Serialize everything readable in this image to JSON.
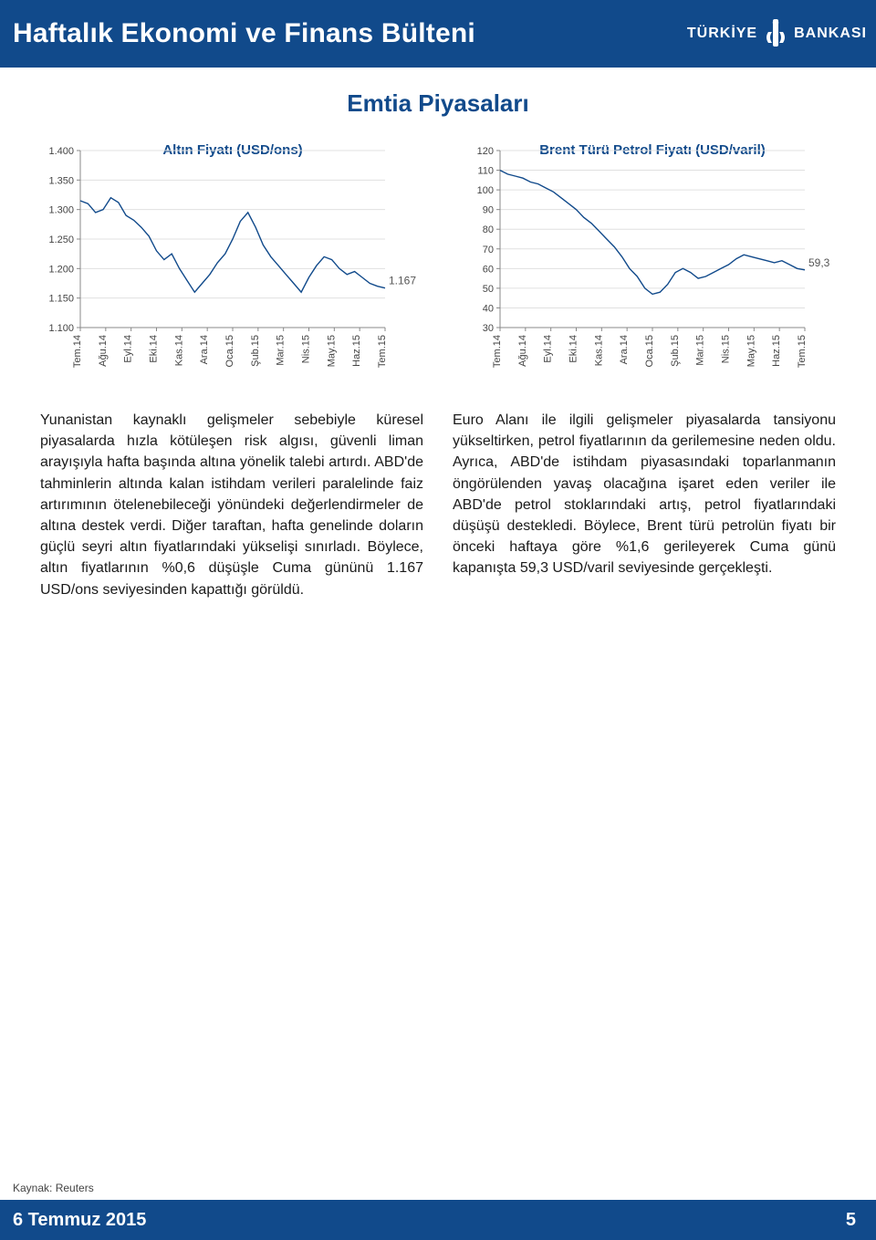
{
  "header": {
    "title": "Haftalık Ekonomi ve Finans Bülteni",
    "bank_left": "TÜRKİYE",
    "bank_right": "BANKASI"
  },
  "section": {
    "title": "Emtia Piyasaları"
  },
  "gold_chart": {
    "type": "line",
    "title": "Altın Fiyatı (USD/ons)",
    "xticks": [
      "Tem.14",
      "Ağu.14",
      "Eyl.14",
      "Eki.14",
      "Kas.14",
      "Ara.14",
      "Oca.15",
      "Şub.15",
      "Mar.15",
      "Nis.15",
      "May.15",
      "Haz.15",
      "Tem.15"
    ],
    "yticks": [
      "1.100",
      "1.150",
      "1.200",
      "1.250",
      "1.300",
      "1.350",
      "1.400"
    ],
    "ylim": [
      1100,
      1400
    ],
    "series_color": "#114a8b",
    "grid_color": "#e0e0e0",
    "axis_color": "#888888",
    "end_label": "1.167",
    "data": [
      [
        0,
        1315
      ],
      [
        0.3,
        1310
      ],
      [
        0.6,
        1295
      ],
      [
        0.9,
        1300
      ],
      [
        1.2,
        1320
      ],
      [
        1.5,
        1312
      ],
      [
        1.8,
        1290
      ],
      [
        2.1,
        1282
      ],
      [
        2.4,
        1270
      ],
      [
        2.7,
        1255
      ],
      [
        3.0,
        1230
      ],
      [
        3.3,
        1215
      ],
      [
        3.6,
        1225
      ],
      [
        3.9,
        1200
      ],
      [
        4.2,
        1180
      ],
      [
        4.5,
        1160
      ],
      [
        4.8,
        1175
      ],
      [
        5.1,
        1190
      ],
      [
        5.4,
        1210
      ],
      [
        5.7,
        1225
      ],
      [
        6.0,
        1250
      ],
      [
        6.3,
        1280
      ],
      [
        6.6,
        1295
      ],
      [
        6.9,
        1270
      ],
      [
        7.2,
        1240
      ],
      [
        7.5,
        1220
      ],
      [
        7.8,
        1205
      ],
      [
        8.1,
        1190
      ],
      [
        8.4,
        1175
      ],
      [
        8.7,
        1160
      ],
      [
        9.0,
        1185
      ],
      [
        9.3,
        1205
      ],
      [
        9.6,
        1220
      ],
      [
        9.9,
        1215
      ],
      [
        10.2,
        1200
      ],
      [
        10.5,
        1190
      ],
      [
        10.8,
        1195
      ],
      [
        11.1,
        1185
      ],
      [
        11.4,
        1175
      ],
      [
        11.7,
        1170
      ],
      [
        12.0,
        1167
      ]
    ]
  },
  "brent_chart": {
    "type": "line",
    "title": "Brent Türü Petrol Fiyatı (USD/varil)",
    "xticks": [
      "Tem.14",
      "Ağu.14",
      "Eyl.14",
      "Eki.14",
      "Kas.14",
      "Ara.14",
      "Oca.15",
      "Şub.15",
      "Mar.15",
      "Nis.15",
      "May.15",
      "Haz.15",
      "Tem.15"
    ],
    "yticks": [
      "30",
      "40",
      "50",
      "60",
      "70",
      "80",
      "90",
      "100",
      "110",
      "120"
    ],
    "ylim": [
      30,
      120
    ],
    "series_color": "#114a8b",
    "grid_color": "#e0e0e0",
    "axis_color": "#888888",
    "end_label": "59,3",
    "data": [
      [
        0,
        110
      ],
      [
        0.3,
        108
      ],
      [
        0.6,
        107
      ],
      [
        0.9,
        106
      ],
      [
        1.2,
        104
      ],
      [
        1.5,
        103
      ],
      [
        1.8,
        101
      ],
      [
        2.1,
        99
      ],
      [
        2.4,
        96
      ],
      [
        2.7,
        93
      ],
      [
        3.0,
        90
      ],
      [
        3.3,
        86
      ],
      [
        3.6,
        83
      ],
      [
        3.9,
        79
      ],
      [
        4.2,
        75
      ],
      [
        4.5,
        71
      ],
      [
        4.8,
        66
      ],
      [
        5.1,
        60
      ],
      [
        5.4,
        56
      ],
      [
        5.7,
        50
      ],
      [
        6.0,
        47
      ],
      [
        6.3,
        48
      ],
      [
        6.6,
        52
      ],
      [
        6.9,
        58
      ],
      [
        7.2,
        60
      ],
      [
        7.5,
        58
      ],
      [
        7.8,
        55
      ],
      [
        8.1,
        56
      ],
      [
        8.4,
        58
      ],
      [
        8.7,
        60
      ],
      [
        9.0,
        62
      ],
      [
        9.3,
        65
      ],
      [
        9.6,
        67
      ],
      [
        9.9,
        66
      ],
      [
        10.2,
        65
      ],
      [
        10.5,
        64
      ],
      [
        10.8,
        63
      ],
      [
        11.1,
        64
      ],
      [
        11.4,
        62
      ],
      [
        11.7,
        60
      ],
      [
        12.0,
        59.3
      ]
    ]
  },
  "paragraphs": {
    "left": "Yunanistan kaynaklı gelişmeler sebebiyle küresel piyasalarda hızla kötüleşen risk algısı, güvenli liman arayışıyla hafta başında altına yönelik talebi artırdı. ABD'de tahminlerin altında kalan istihdam verileri paralelinde faiz artırımının ötelenebileceği yönündeki değerlendirmeler de altına destek verdi. Diğer taraftan, hafta genelinde doların güçlü seyri altın fiyatlarındaki yükselişi sınırladı. Böylece, altın fiyatlarının %0,6 düşüşle Cuma gününü 1.167 USD/ons seviyesinden kapattığı görüldü.",
    "right": "Euro Alanı ile ilgili gelişmeler piyasalarda tansiyonu yükseltirken, petrol fiyatlarının da gerilemesine neden oldu. Ayrıca, ABD'de istihdam piyasasındaki toparlanmanın öngörülenden yavaş olacağına işaret eden veriler ile ABD'de petrol stoklarındaki artış, petrol fiyatlarındaki düşüşü destekledi. Böylece, Brent türü petrolün fiyatı bir önceki haftaya göre %1,6 gerileyerek Cuma günü kapanışta 59,3 USD/varil seviyesinde gerçekleşti."
  },
  "footer": {
    "source": "Kaynak: Reuters",
    "date": "6 Temmuz 2015",
    "page": "5"
  }
}
